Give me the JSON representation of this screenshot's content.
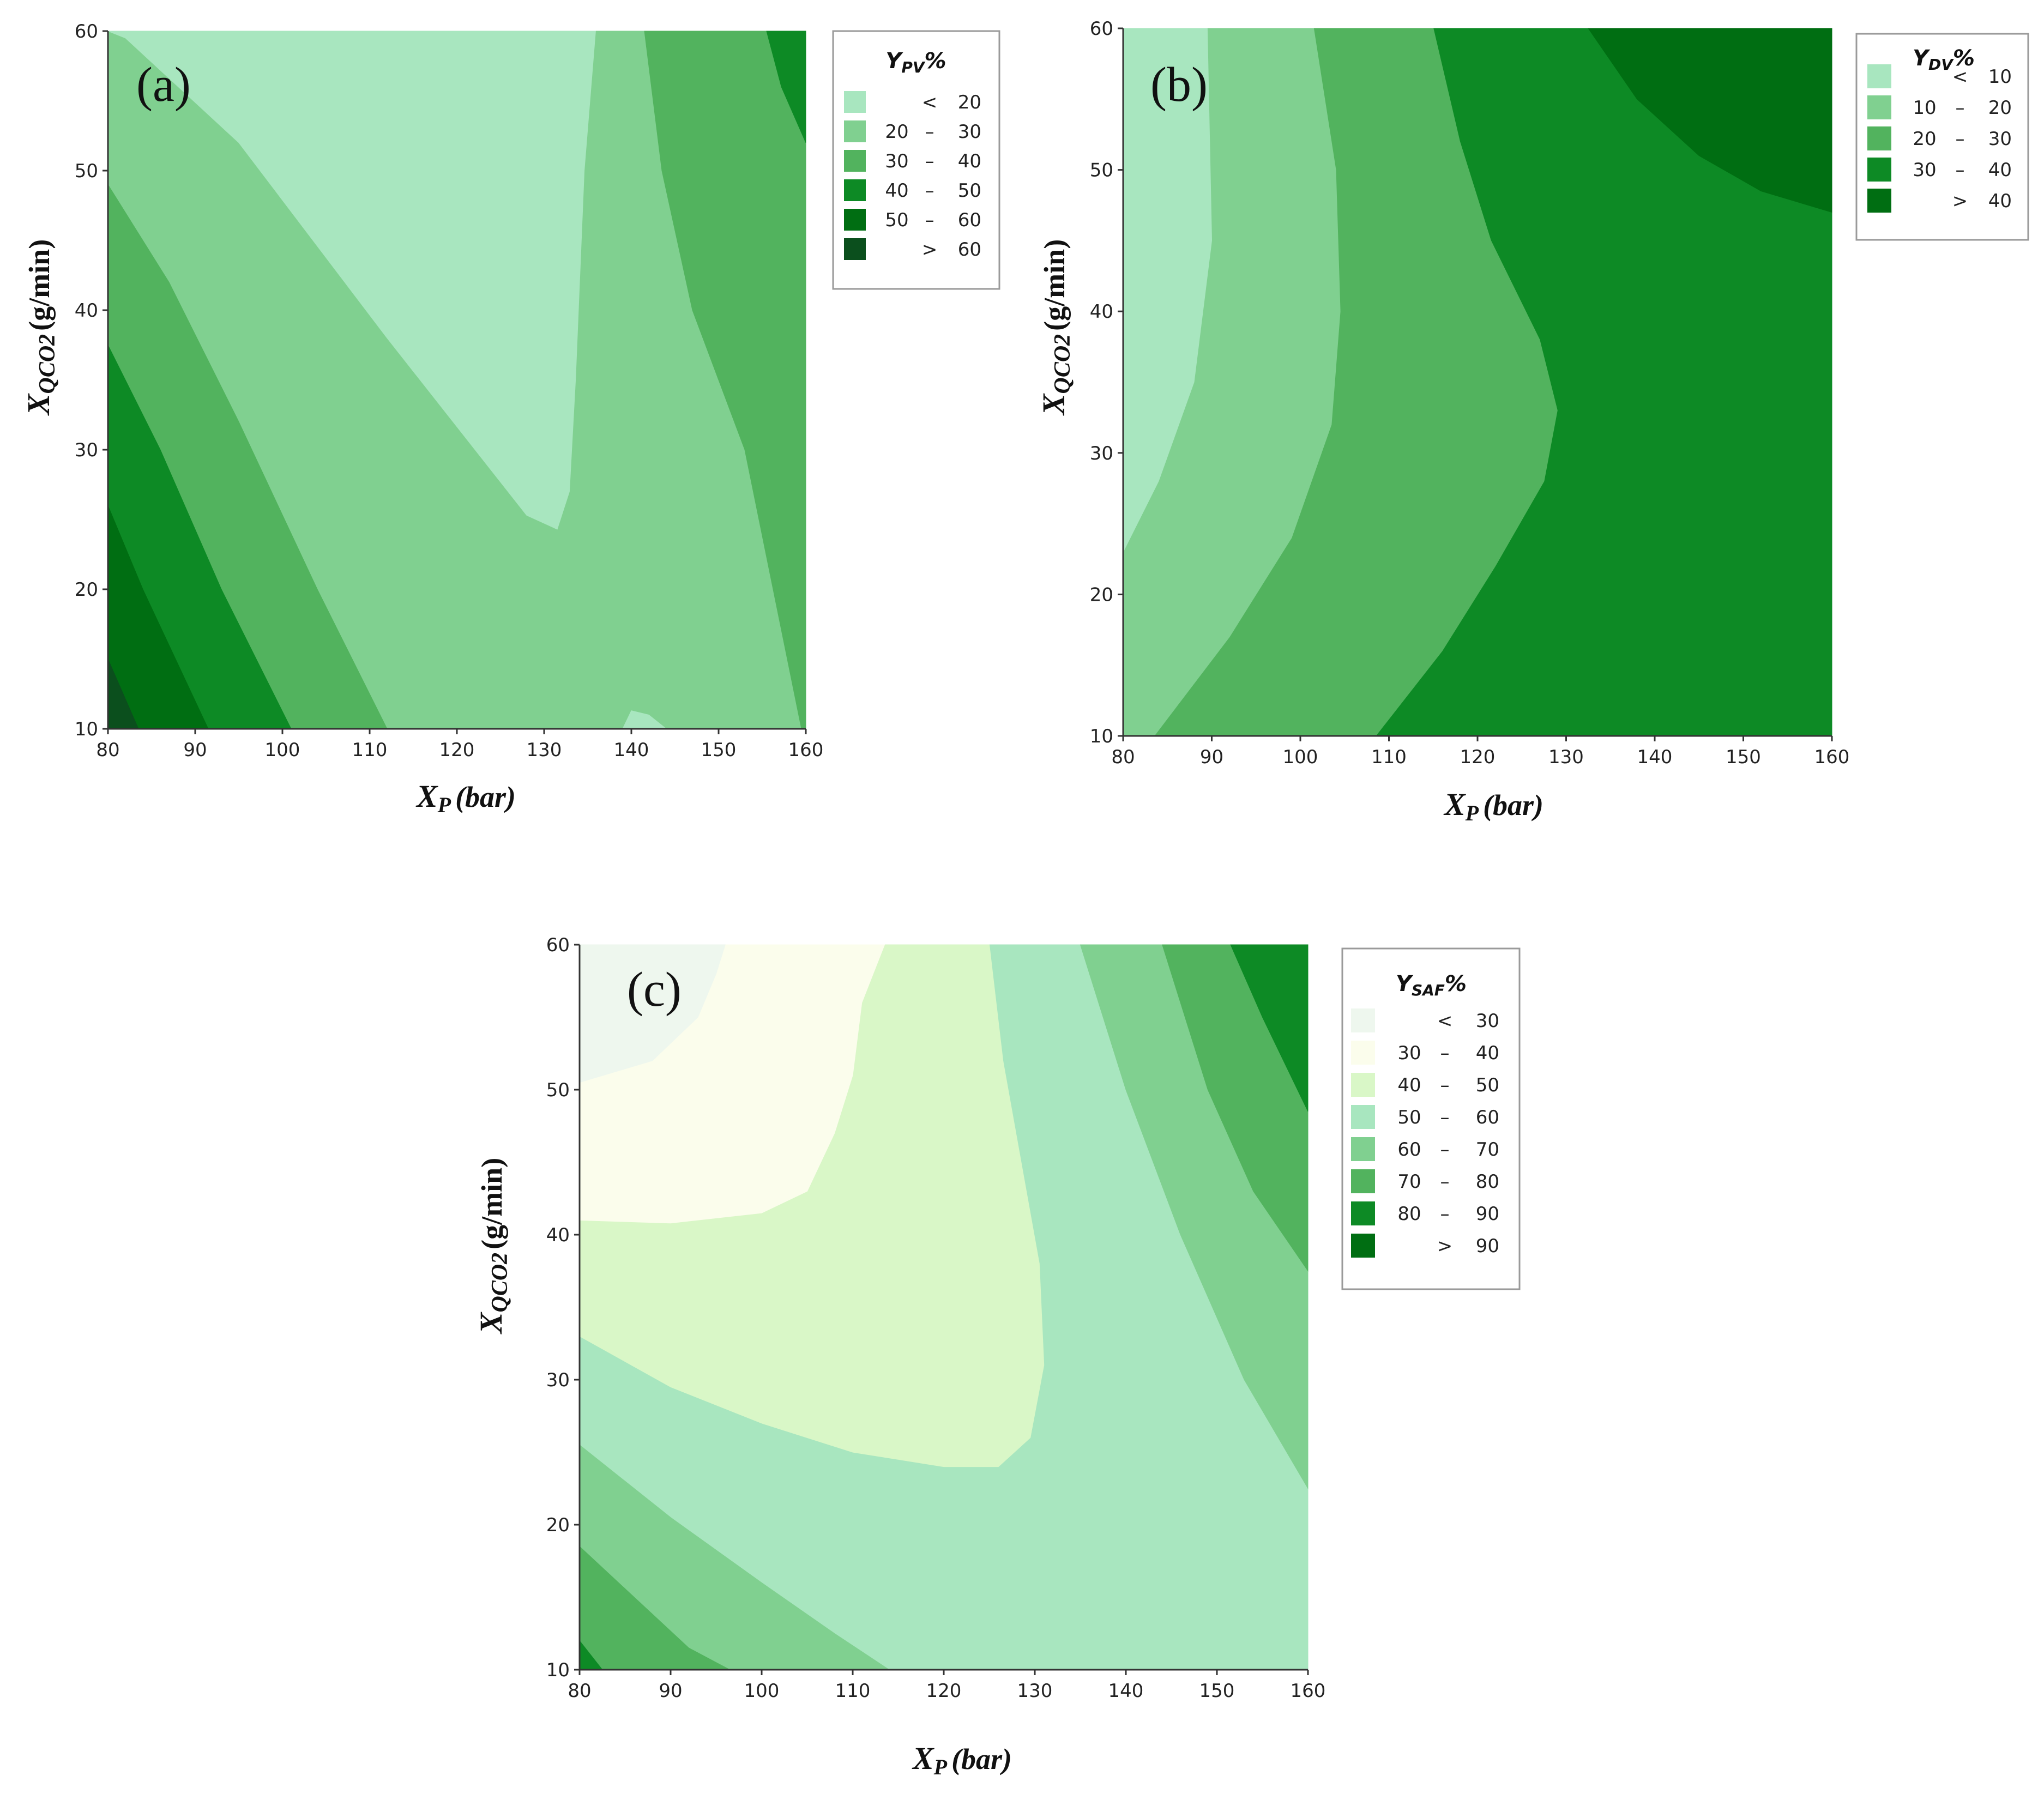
{
  "chart_data": [
    {
      "type": "heatmap",
      "panel": "(a)",
      "title": "(a)",
      "xlabel": "XP (bar)",
      "ylabel": "XQCO2 (g/min)",
      "xlabel_main": "X",
      "xlabel_sub": "P",
      "xlabel_unit": "(bar)",
      "ylabel_main": "X",
      "ylabel_sub": "QCO2",
      "ylabel_unit": "(g/min)",
      "xlim": [
        80,
        160
      ],
      "ylim": [
        10,
        60
      ],
      "xticks": [
        "80",
        "90",
        "100",
        "110",
        "120",
        "130",
        "140",
        "150",
        "160"
      ],
      "yticks": [
        "10",
        "20",
        "30",
        "40",
        "50",
        "60"
      ],
      "legend_title_main": "Y",
      "legend_title_sub": "PV",
      "legend_title_suffix": "%",
      "legend": [
        {
          "left": "",
          "op": "<",
          "right": "20",
          "color": "#a8e6bf"
        },
        {
          "left": "20",
          "op": "–",
          "right": "30",
          "color": "#80d090"
        },
        {
          "left": "30",
          "op": "–",
          "right": "40",
          "color": "#52b35e"
        },
        {
          "left": "40",
          "op": "–",
          "right": "50",
          "color": "#0d8a25"
        },
        {
          "left": "50",
          "op": "–",
          "right": "60",
          "color": "#006e12"
        },
        {
          "left": "",
          "op": ">",
          "right": "60",
          "color": "#0b4f1d"
        }
      ],
      "regions": [
        {
          "level": "20 – 30",
          "color": "#80d090",
          "points": [
            [
              80,
              10
            ],
            [
              160,
              10
            ],
            [
              160,
              60
            ],
            [
              80,
              60
            ]
          ]
        },
        {
          "level": "< 20",
          "color": "#a8e6bf",
          "points": [
            [
              80,
              60
            ],
            [
              135.9,
              60
            ],
            [
              134.6,
              50
            ],
            [
              133.6,
              35
            ],
            [
              132.9,
              27
            ],
            [
              131.5,
              24.3
            ],
            [
              128,
              25.3
            ],
            [
              112,
              38
            ],
            [
              95,
              52
            ],
            [
              82,
              59.5
            ]
          ]
        },
        {
          "level": "< 20",
          "color": "#a8e6bf",
          "points": [
            [
              139,
              10
            ],
            [
              144,
              10
            ],
            [
              142,
              11
            ],
            [
              140,
              11.3
            ]
          ]
        },
        {
          "level": "30 – 40",
          "color": "#52b35e",
          "points": [
            [
              80,
              49
            ],
            [
              87,
              42
            ],
            [
              95,
              32
            ],
            [
              104,
              20
            ],
            [
              112,
              10
            ],
            [
              80,
              10
            ]
          ]
        },
        {
          "level": "30 – 40",
          "color": "#52b35e",
          "points": [
            [
              141.5,
              60
            ],
            [
              143.5,
              50
            ],
            [
              147,
              40
            ],
            [
              153,
              30
            ],
            [
              159.5,
              10
            ],
            [
              160,
              10
            ],
            [
              160,
              60
            ]
          ]
        },
        {
          "level": "40 – 50",
          "color": "#0d8a25",
          "points": [
            [
              80,
              37.5
            ],
            [
              86,
              30
            ],
            [
              93,
              20
            ],
            [
              101,
              10
            ],
            [
              80,
              10
            ]
          ]
        },
        {
          "level": "40 – 50",
          "color": "#0d8a25",
          "points": [
            [
              155.5,
              60
            ],
            [
              157.2,
              56
            ],
            [
              160,
              52
            ],
            [
              160,
              60
            ]
          ]
        },
        {
          "level": "50 – 60",
          "color": "#006e12",
          "points": [
            [
              80,
              26
            ],
            [
              84,
              20
            ],
            [
              91.5,
              10
            ],
            [
              80,
              10
            ]
          ]
        },
        {
          "level": "> 60",
          "color": "#0b4f1d",
          "points": [
            [
              80,
              15
            ],
            [
              83.5,
              10
            ],
            [
              80,
              10
            ]
          ]
        }
      ]
    },
    {
      "type": "heatmap",
      "panel": "(b)",
      "title": "(b)",
      "xlabel": "XP (bar)",
      "ylabel": "XQCO2 (g/min)",
      "xlabel_main": "X",
      "xlabel_sub": "P",
      "xlabel_unit": "(bar)",
      "ylabel_main": "X",
      "ylabel_sub": "QCO2",
      "ylabel_unit": "(g/min)",
      "xlim": [
        80,
        160
      ],
      "ylim": [
        10,
        60
      ],
      "xticks": [
        "80",
        "90",
        "100",
        "110",
        "120",
        "130",
        "140",
        "150",
        "160"
      ],
      "yticks": [
        "10",
        "20",
        "30",
        "40",
        "50",
        "60"
      ],
      "legend_title_main": "Y",
      "legend_title_sub": "DV",
      "legend_title_suffix": "%",
      "legend": [
        {
          "left": "",
          "op": "<",
          "right": "10",
          "color": "#a8e6bf"
        },
        {
          "left": "10",
          "op": "–",
          "right": "20",
          "color": "#80d090"
        },
        {
          "left": "20",
          "op": "–",
          "right": "30",
          "color": "#52b35e"
        },
        {
          "left": "30",
          "op": "–",
          "right": "40",
          "color": "#0d8a25"
        },
        {
          "left": "",
          "op": ">",
          "right": "40",
          "color": "#006e12"
        }
      ],
      "regions": [
        {
          "level": "30 – 40",
          "color": "#0d8a25",
          "points": [
            [
              80,
              10
            ],
            [
              160,
              10
            ],
            [
              160,
              60
            ],
            [
              80,
              60
            ]
          ]
        },
        {
          "level": "20 – 30",
          "color": "#52b35e",
          "points": [
            [
              80,
              10
            ],
            [
              108.5,
              10
            ],
            [
              116,
              16
            ],
            [
              122,
              22
            ],
            [
              127.5,
              28
            ],
            [
              129,
              33
            ],
            [
              127,
              38
            ],
            [
              121.5,
              45
            ],
            [
              118,
              52
            ],
            [
              115,
              60
            ],
            [
              80,
              60
            ]
          ]
        },
        {
          "level": "10 – 20",
          "color": "#80d090",
          "points": [
            [
              80,
              10
            ],
            [
              83.5,
              10
            ],
            [
              92,
              17
            ],
            [
              99,
              24
            ],
            [
              103.5,
              32
            ],
            [
              104.5,
              40
            ],
            [
              104,
              50
            ],
            [
              101.5,
              60
            ],
            [
              80,
              60
            ]
          ]
        },
        {
          "level": "< 10",
          "color": "#a8e6bf",
          "points": [
            [
              80,
              23
            ],
            [
              84,
              28
            ],
            [
              88,
              35
            ],
            [
              90,
              45
            ],
            [
              89.5,
              60
            ],
            [
              80,
              60
            ]
          ]
        },
        {
          "level": "> 40",
          "color": "#006e12",
          "points": [
            [
              132.5,
              60
            ],
            [
              138,
              55
            ],
            [
              145,
              51
            ],
            [
              152,
              48.5
            ],
            [
              160,
              47
            ],
            [
              160,
              60
            ]
          ]
        }
      ]
    },
    {
      "type": "heatmap",
      "panel": "(c)",
      "title": "(c)",
      "xlabel": "XP (bar)",
      "ylabel": "XQCO2 (g/min)",
      "xlabel_main": "X",
      "xlabel_sub": "P",
      "xlabel_unit": "(bar)",
      "ylabel_main": "X",
      "ylabel_sub": "QCO2",
      "ylabel_unit": "(g/min)",
      "xlim": [
        80,
        160
      ],
      "ylim": [
        10,
        60
      ],
      "xticks": [
        "80",
        "90",
        "100",
        "110",
        "120",
        "130",
        "140",
        "150",
        "160"
      ],
      "yticks": [
        "10",
        "20",
        "30",
        "40",
        "50",
        "60"
      ],
      "legend_title_main": "Y",
      "legend_title_sub": "SAF",
      "legend_title_suffix": "%",
      "legend": [
        {
          "left": "",
          "op": "<",
          "right": "30",
          "color": "#eef7ee"
        },
        {
          "left": "30",
          "op": "–",
          "right": "40",
          "color": "#fbfdec"
        },
        {
          "left": "40",
          "op": "–",
          "right": "50",
          "color": "#d9f7c7"
        },
        {
          "left": "50",
          "op": "–",
          "right": "60",
          "color": "#a8e6bf"
        },
        {
          "left": "60",
          "op": "–",
          "right": "70",
          "color": "#80d090"
        },
        {
          "left": "70",
          "op": "–",
          "right": "80",
          "color": "#52b35e"
        },
        {
          "left": "80",
          "op": "–",
          "right": "90",
          "color": "#0d8a25"
        },
        {
          "left": "",
          "op": ">",
          "right": "90",
          "color": "#006e12"
        }
      ],
      "regions": [
        {
          "level": "50 – 60",
          "color": "#a8e6bf",
          "points": [
            [
              80,
              10
            ],
            [
              160,
              10
            ],
            [
              160,
              60
            ],
            [
              80,
              60
            ]
          ]
        },
        {
          "level": "40 – 50",
          "color": "#d9f7c7",
          "points": [
            [
              80,
              33
            ],
            [
              90,
              29.5
            ],
            [
              100,
              27
            ],
            [
              110,
              25
            ],
            [
              120,
              24
            ],
            [
              126,
              24
            ],
            [
              129.5,
              26
            ],
            [
              131,
              31
            ],
            [
              130.5,
              38
            ],
            [
              128.5,
              45
            ],
            [
              126.5,
              52
            ],
            [
              125,
              60
            ],
            [
              80,
              60
            ]
          ]
        },
        {
          "level": "30 – 40",
          "color": "#fbfdec",
          "points": [
            [
              80,
              41
            ],
            [
              90,
              40.8
            ],
            [
              100,
              41.5
            ],
            [
              105,
              43
            ],
            [
              108,
              47
            ],
            [
              110,
              51
            ],
            [
              111,
              56
            ],
            [
              113.5,
              60
            ],
            [
              80,
              60
            ]
          ]
        },
        {
          "level": "< 30",
          "color": "#eef7ee",
          "points": [
            [
              80,
              50.5
            ],
            [
              88,
              52
            ],
            [
              93,
              55
            ],
            [
              95,
              58
            ],
            [
              96,
              60
            ],
            [
              80,
              60
            ]
          ]
        },
        {
          "level": "60 – 70",
          "color": "#80d090",
          "points": [
            [
              80,
              25.5
            ],
            [
              90,
              20.5
            ],
            [
              100,
              16
            ],
            [
              108,
              12.5
            ],
            [
              114,
              10
            ],
            [
              80,
              10
            ]
          ]
        },
        {
          "level": "60 – 70",
          "color": "#80d090",
          "points": [
            [
              135,
              60
            ],
            [
              140,
              50
            ],
            [
              146,
              40
            ],
            [
              153,
              30
            ],
            [
              160,
              22.5
            ],
            [
              160,
              60
            ]
          ]
        },
        {
          "level": "70 – 80",
          "color": "#52b35e",
          "points": [
            [
              80,
              18.5
            ],
            [
              86,
              15
            ],
            [
              92,
              11.5
            ],
            [
              96.5,
              10
            ],
            [
              80,
              10
            ]
          ]
        },
        {
          "level": "70 – 80",
          "color": "#52b35e",
          "points": [
            [
              144,
              60
            ],
            [
              149,
              50
            ],
            [
              154,
              43
            ],
            [
              160,
              37.5
            ],
            [
              160,
              60
            ]
          ]
        },
        {
          "level": "80 – 90",
          "color": "#0d8a25",
          "points": [
            [
              80,
              12
            ],
            [
              82.5,
              10
            ],
            [
              80,
              10
            ]
          ]
        },
        {
          "level": "80 – 90",
          "color": "#0d8a25",
          "points": [
            [
              151.5,
              60
            ],
            [
              155,
              55
            ],
            [
              160,
              48.5
            ],
            [
              160,
              60
            ]
          ]
        }
      ]
    }
  ]
}
